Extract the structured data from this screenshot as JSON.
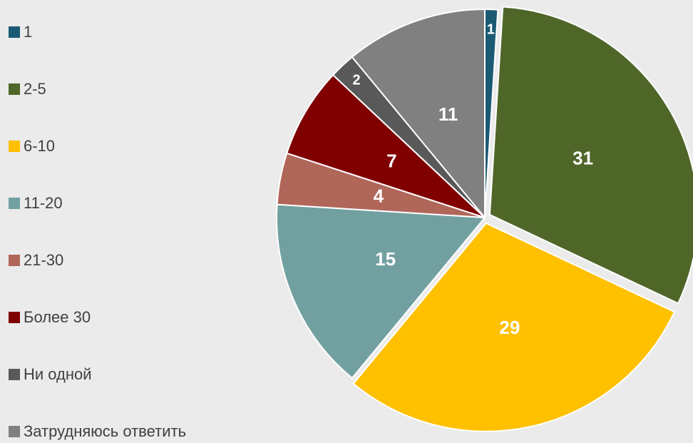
{
  "chart_data": {
    "type": "pie",
    "categories": [
      "1",
      "2-5",
      "6-10",
      "11-20",
      "21-30",
      "Более 30",
      "Ни одной",
      "Затрудняюсь ответить"
    ],
    "values": [
      1,
      31,
      29,
      15,
      4,
      7,
      2,
      11
    ],
    "colors": [
      "#1b5a73",
      "#4f6629",
      "#ffc000",
      "#72a0a0",
      "#b1665a",
      "#800000",
      "#595959",
      "#808080"
    ],
    "legend": "left"
  }
}
